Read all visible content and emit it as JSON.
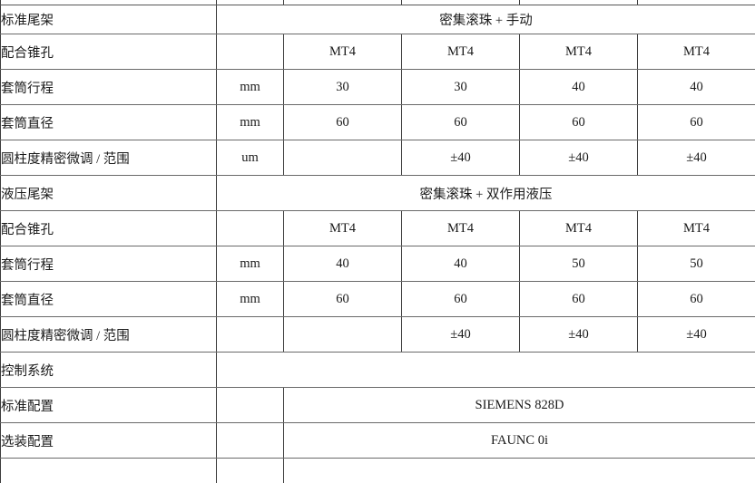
{
  "table": {
    "rows": [
      {
        "kind": "section",
        "label": "标准尾架",
        "span": "密集滚珠 + 手动"
      },
      {
        "kind": "data",
        "label": "配合锥孔",
        "unit": "",
        "values": [
          "MT4",
          "MT4",
          "MT4",
          "MT4"
        ]
      },
      {
        "kind": "data",
        "label": "套筒行程",
        "unit": "mm",
        "values": [
          "30",
          "30",
          "40",
          "40"
        ]
      },
      {
        "kind": "data",
        "label": "套筒直径",
        "unit": "mm",
        "values": [
          "60",
          "60",
          "60",
          "60"
        ]
      },
      {
        "kind": "data",
        "label": "圆柱度精密微调 / 范围",
        "unit": "um",
        "values": [
          "",
          "±40",
          "±40",
          "±40"
        ]
      },
      {
        "kind": "section",
        "label": "液压尾架",
        "span": "密集滚珠 + 双作用液压"
      },
      {
        "kind": "data",
        "label": "配合锥孔",
        "unit": "",
        "values": [
          "MT4",
          "MT4",
          "MT4",
          "MT4"
        ]
      },
      {
        "kind": "data",
        "label": "套筒行程",
        "unit": "mm",
        "values": [
          "40",
          "40",
          "50",
          "50"
        ]
      },
      {
        "kind": "data",
        "label": "套筒直径",
        "unit": "mm",
        "values": [
          "60",
          "60",
          "60",
          "60"
        ]
      },
      {
        "kind": "data",
        "label": "圆柱度精密微调 / 范围",
        "unit": "",
        "values": [
          "",
          "±40",
          "±40",
          "±40"
        ]
      },
      {
        "kind": "section",
        "label": "控制系统",
        "span": ""
      },
      {
        "kind": "config",
        "label": "标准配置",
        "unit": "",
        "value": "SIEMENS 828D"
      },
      {
        "kind": "config",
        "label": "选装配置",
        "unit": "",
        "value": "FAUNC 0i"
      },
      {
        "kind": "config",
        "label": "",
        "unit": "",
        "value": ""
      }
    ]
  }
}
